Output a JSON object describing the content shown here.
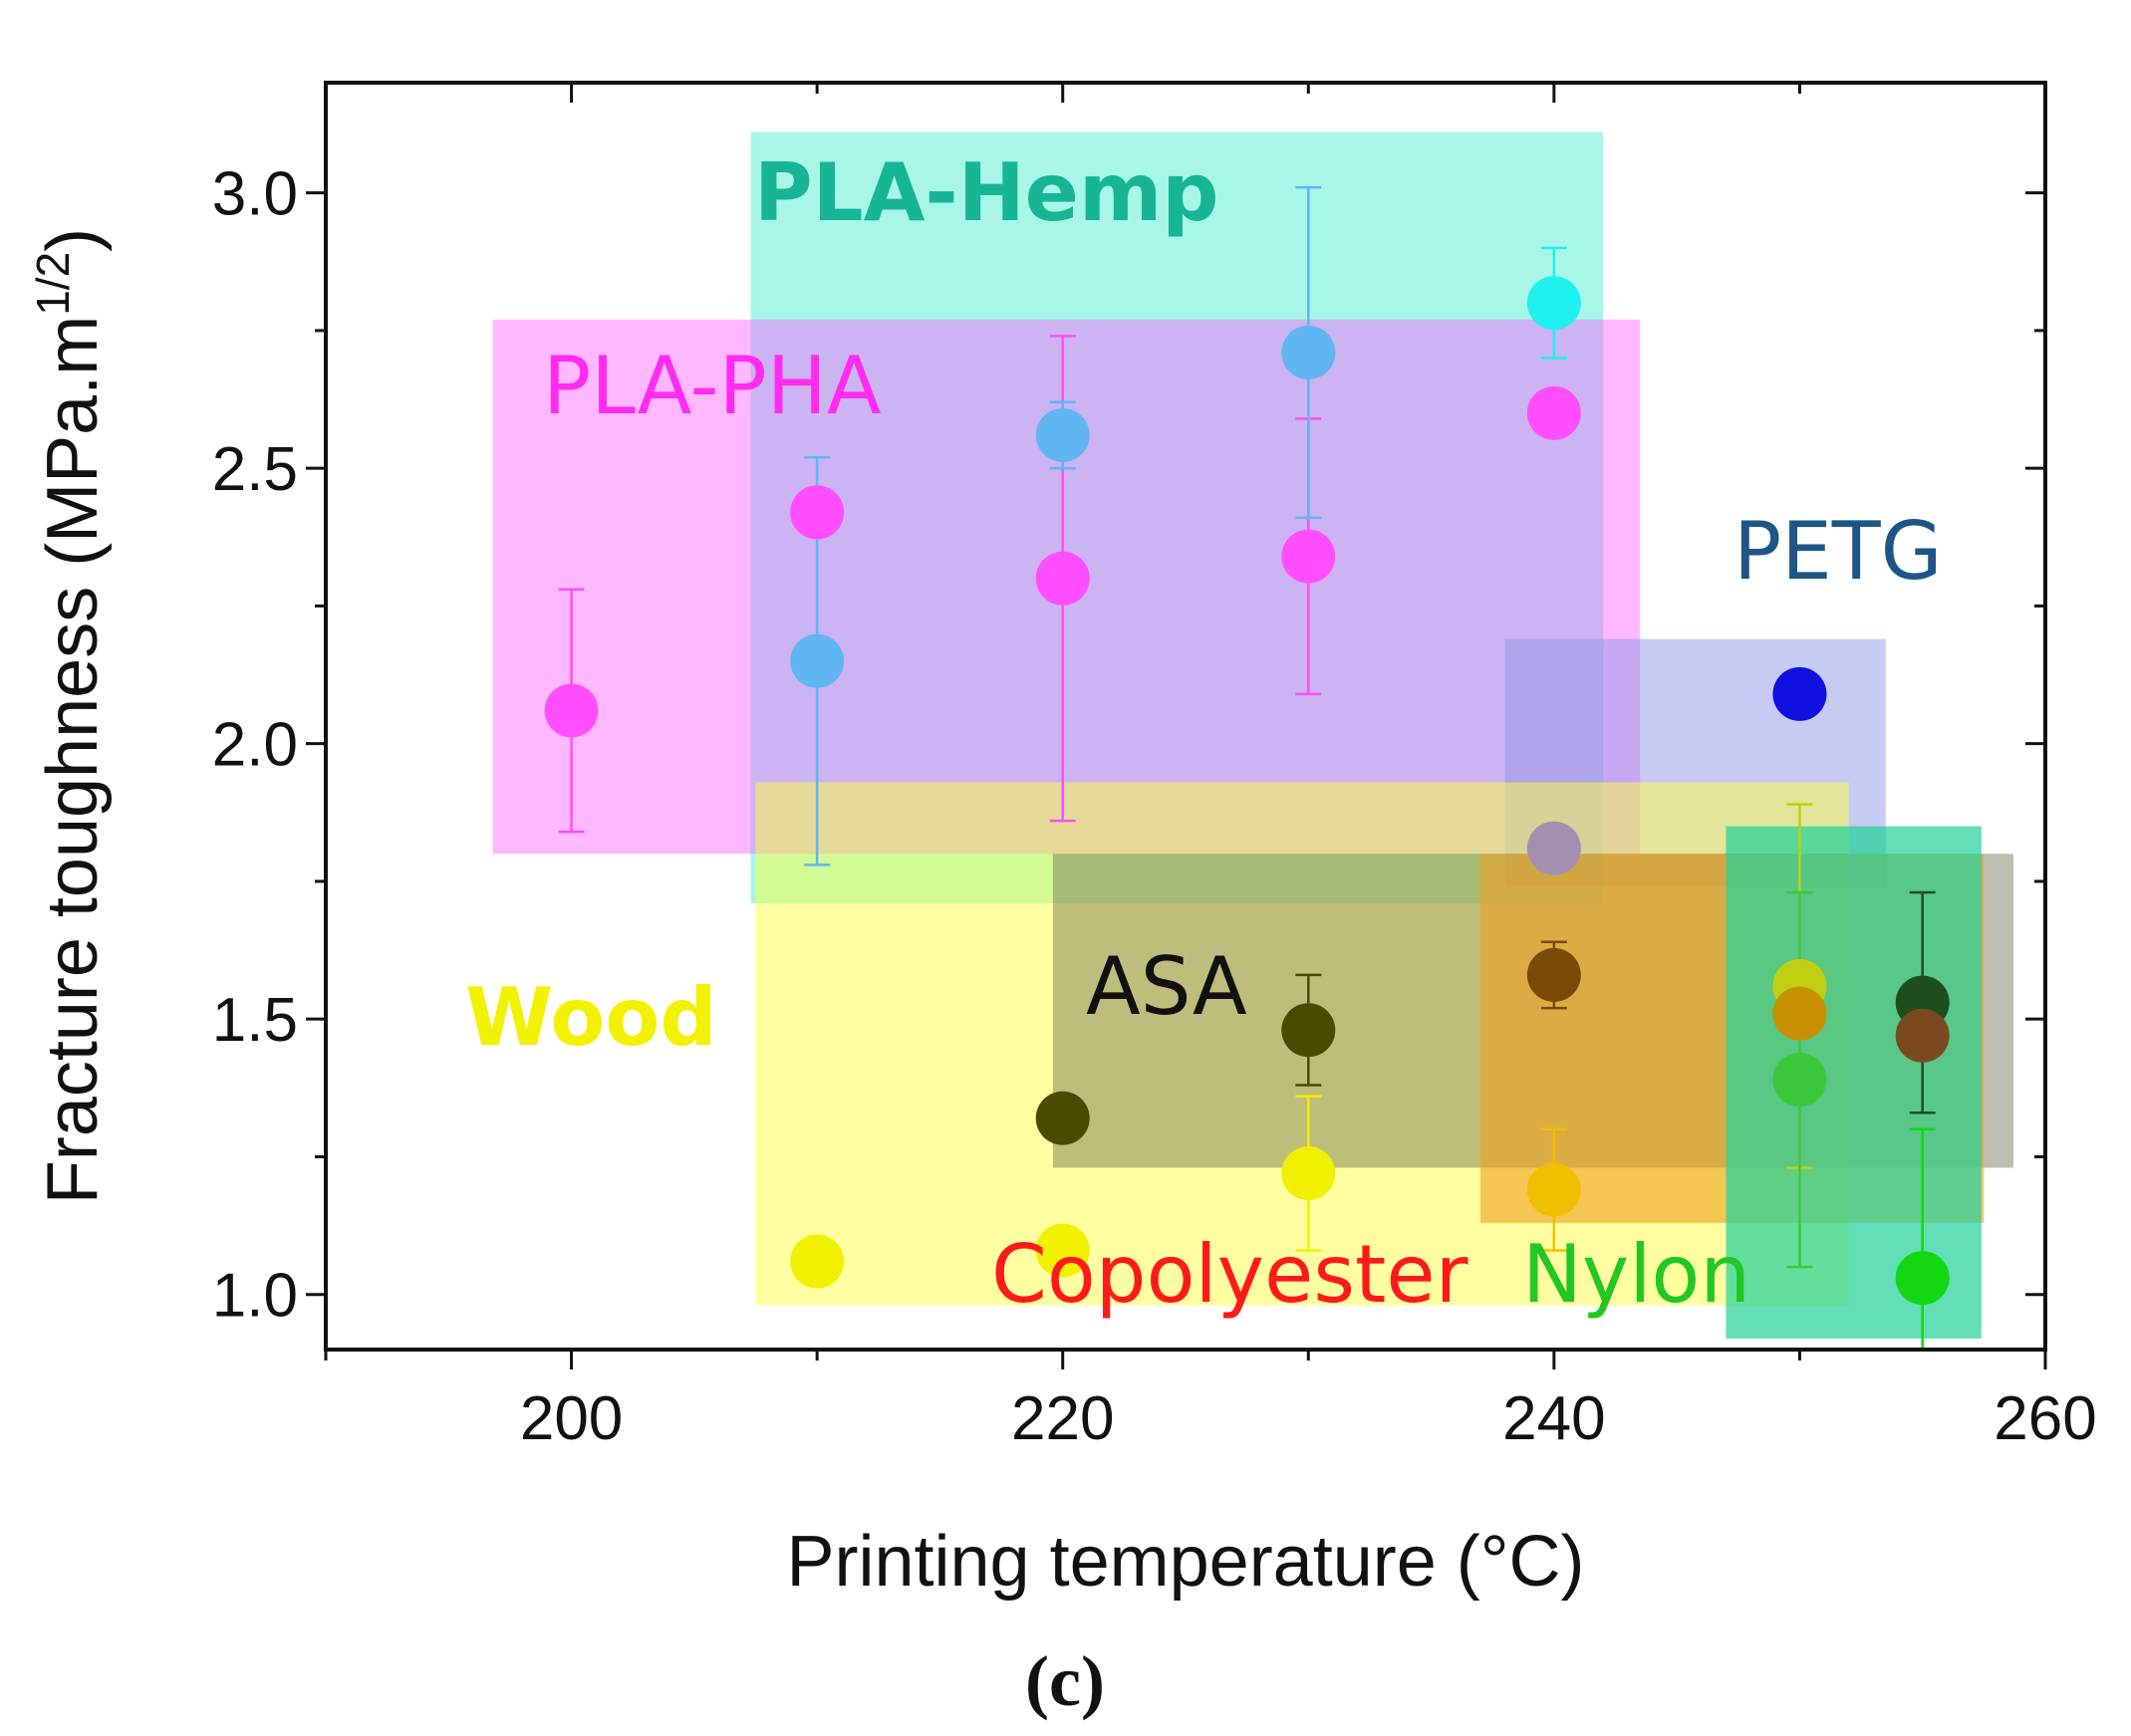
{
  "chart_data": {
    "type": "scatter",
    "title": "",
    "xlabel": "Printing temperature (°C)",
    "ylabel_main": "Fracture toughness (MPa.m",
    "ylabel_sup": "1/2",
    "ylabel_close": ")",
    "xlim": [
      190,
      260
    ],
    "ylim": [
      0.9,
      3.2
    ],
    "x_ticks": [
      "200",
      "220",
      "240",
      "260"
    ],
    "x_tick_values": [
      200,
      220,
      240,
      260
    ],
    "y_ticks": [
      "1.0",
      "1.5",
      "2.0",
      "2.5",
      "3.0"
    ],
    "y_tick_values": [
      1.0,
      1.5,
      2.0,
      2.5,
      3.0
    ],
    "panel_label": "(c)",
    "regions": [
      {
        "name": "PLA-Hemp",
        "label": "PLA-Hemp",
        "x": [
          207.3,
          242.0
        ],
        "y": [
          1.71,
          3.11
        ],
        "fill": "#5eefd4",
        "alpha": 0.55,
        "text_color": "#18b595",
        "bold": true
      },
      {
        "name": "PLA-PHA",
        "label": "PLA-PHA",
        "x": [
          196.8,
          243.5
        ],
        "y": [
          1.8,
          2.77
        ],
        "fill": "#ff55ff",
        "alpha": 0.42,
        "text_color": "#ff2cf0",
        "bold": false
      },
      {
        "name": "PETG",
        "label": "PETG",
        "x": [
          238.0,
          253.5
        ],
        "y": [
          1.74,
          2.19
        ],
        "fill": "#9096e6",
        "alpha": 0.5,
        "text_color": "#1d5586",
        "bold": false
      },
      {
        "name": "Wood",
        "label": "Wood",
        "x": [
          207.5,
          252.0
        ],
        "y": [
          0.98,
          1.93
        ],
        "fill": "#ffff44",
        "alpha": 0.5,
        "text_color": "#f2f200",
        "bold": true
      },
      {
        "name": "ASA",
        "label": "ASA",
        "x": [
          219.6,
          258.7
        ],
        "y": [
          1.23,
          1.8
        ],
        "fill": "#6f6f50",
        "alpha": 0.45,
        "text_color": "#111111",
        "bold": false
      },
      {
        "name": "Copolyester",
        "label": "Copolyester",
        "x": [
          237.0,
          257.5
        ],
        "y": [
          1.13,
          1.8
        ],
        "fill": "#f0a020",
        "alpha": 0.6,
        "text_color": "#ff1a1a",
        "bold": false
      },
      {
        "name": "Nylon",
        "label": "Nylon",
        "x": [
          247.0,
          257.4
        ],
        "y": [
          0.92,
          1.85
        ],
        "fill": "#25d39a",
        "alpha": 0.72,
        "text_color": "#22c722",
        "bold": false
      }
    ],
    "series": [
      {
        "name": "PLA-PHA",
        "color": "#ff4dff",
        "points": [
          {
            "x": 200,
            "y": 2.06,
            "err": [
              1.84,
              2.28
            ]
          },
          {
            "x": 210,
            "y": 2.42,
            "err": null
          },
          {
            "x": 220,
            "y": 2.3,
            "err": [
              1.86,
              2.74
            ]
          },
          {
            "x": 230,
            "y": 2.34,
            "err": [
              2.09,
              2.59
            ]
          },
          {
            "x": 240,
            "y": 2.6,
            "err": null
          }
        ]
      },
      {
        "name": "PLA-Hemp",
        "color": "#5fb6f3",
        "points": [
          {
            "x": 210,
            "y": 2.15,
            "err": [
              1.78,
              2.52
            ]
          },
          {
            "x": 220,
            "y": 2.56,
            "err": [
              2.5,
              2.62
            ]
          },
          {
            "x": 230,
            "y": 2.71,
            "err": [
              2.41,
              3.01
            ]
          },
          {
            "x": 240,
            "y": 2.8,
            "err": [
              2.7,
              2.9
            ],
            "color": "#1ff0f0"
          }
        ]
      },
      {
        "name": "PETG",
        "color": "#1010e0",
        "points": [
          {
            "x": 250,
            "y": 2.09,
            "err": null
          },
          {
            "x": 240,
            "y": 1.81,
            "err": null,
            "color": "#a58fb0"
          }
        ]
      },
      {
        "name": "ASA",
        "color": "#4a4a00",
        "points": [
          {
            "x": 220,
            "y": 1.32,
            "err": null
          },
          {
            "x": 230,
            "y": 1.48,
            "err": [
              1.38,
              1.58
            ]
          },
          {
            "x": 240,
            "y": 1.58,
            "err": [
              1.52,
              1.64
            ],
            "color": "#7a4a05"
          },
          {
            "x": 255,
            "y": 1.53,
            "err": [
              1.33,
              1.73
            ],
            "color": "#1e4d1e"
          },
          {
            "x": 255,
            "y": 1.47,
            "err": null,
            "color": "#7a4a1e"
          }
        ]
      },
      {
        "name": "Wood",
        "color": "#f0f000",
        "points": [
          {
            "x": 210,
            "y": 1.06,
            "err": null
          },
          {
            "x": 220,
            "y": 1.08,
            "err": null
          },
          {
            "x": 230,
            "y": 1.22,
            "err": [
              1.08,
              1.36
            ]
          },
          {
            "x": 240,
            "y": 1.19,
            "err": [
              1.08,
              1.3
            ],
            "color": "#f0c000"
          }
        ]
      },
      {
        "name": "Nylon",
        "color": "#11d811",
        "points": [
          {
            "x": 250,
            "y": 1.56,
            "err": [
              1.23,
              1.89
            ],
            "color": "#c0d010"
          },
          {
            "x": 250,
            "y": 1.51,
            "err": null,
            "color": "#c89000"
          },
          {
            "x": 250,
            "y": 1.39,
            "err": [
              1.05,
              1.73
            ],
            "color": "#3cc83c"
          },
          {
            "x": 255,
            "y": 1.03,
            "err": [
              0.9,
              1.3
            ]
          }
        ]
      }
    ]
  }
}
